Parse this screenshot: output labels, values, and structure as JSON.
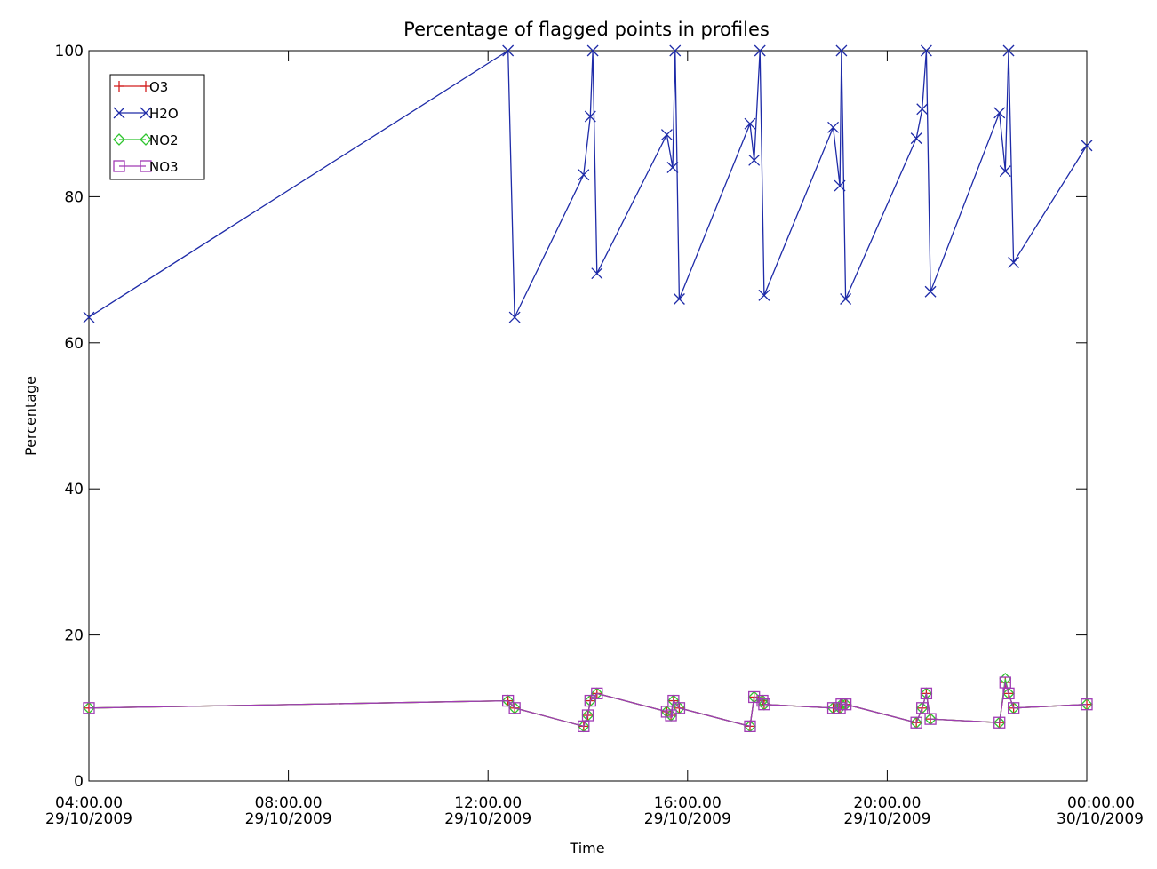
{
  "chart_data": {
    "type": "line",
    "title": "Percentage of flagged points in profiles",
    "xlabel": "Time",
    "ylabel": "Percentage",
    "xlim": [
      "2009-10-29T04:00",
      "2009-10-30T00:00"
    ],
    "ylim": [
      0,
      100
    ],
    "grid": false,
    "legend_position": "top-left",
    "x_ticks": [
      {
        "time": "2009-10-29T04:00",
        "line1": "04:00.00",
        "line2": "29/10/2009"
      },
      {
        "time": "2009-10-29T08:00",
        "line1": "08:00.00",
        "line2": "29/10/2009"
      },
      {
        "time": "2009-10-29T12:00",
        "line1": "12:00.00",
        "line2": "29/10/2009"
      },
      {
        "time": "2009-10-29T16:00",
        "line1": "16:00.00",
        "line2": "29/10/2009"
      },
      {
        "time": "2009-10-29T20:00",
        "line1": "20:00.00",
        "line2": "29/10/2009"
      },
      {
        "time": "2009-10-30T00:00",
        "line1": "00:00.00",
        "line2": "30/10/2009"
      }
    ],
    "y_ticks": [
      0,
      20,
      40,
      60,
      80,
      100
    ],
    "series": [
      {
        "name": "O3",
        "color": "#d21e1e",
        "marker": "plus",
        "points": [
          [
            "2009-10-29T04:00",
            10
          ],
          [
            "2009-10-29T12:24",
            11
          ],
          [
            "2009-10-29T12:32",
            10
          ],
          [
            "2009-10-29T13:55",
            7.5
          ],
          [
            "2009-10-29T14:00",
            9
          ],
          [
            "2009-10-29T14:03",
            11
          ],
          [
            "2009-10-29T14:11",
            12
          ],
          [
            "2009-10-29T15:35",
            9.5
          ],
          [
            "2009-10-29T15:40",
            9
          ],
          [
            "2009-10-29T15:43",
            11
          ],
          [
            "2009-10-29T15:50",
            10
          ],
          [
            "2009-10-29T17:15",
            7.5
          ],
          [
            "2009-10-29T17:20",
            11.5
          ],
          [
            "2009-10-29T17:30",
            11
          ],
          [
            "2009-10-29T17:32",
            10.5
          ],
          [
            "2009-10-29T18:55",
            10
          ],
          [
            "2009-10-29T19:03",
            10
          ],
          [
            "2009-10-29T19:05",
            10.5
          ],
          [
            "2009-10-29T19:10",
            10.5
          ],
          [
            "2009-10-29T20:35",
            8
          ],
          [
            "2009-10-29T20:42",
            10
          ],
          [
            "2009-10-29T20:47",
            12
          ],
          [
            "2009-10-29T20:52",
            8.5
          ],
          [
            "2009-10-29T22:15",
            8
          ],
          [
            "2009-10-29T22:22",
            13.5
          ],
          [
            "2009-10-29T22:26",
            12
          ],
          [
            "2009-10-29T22:32",
            10
          ],
          [
            "2009-10-30T00:00",
            10.5
          ]
        ]
      },
      {
        "name": "H2O",
        "color": "#1e2ba8",
        "marker": "x",
        "points": [
          [
            "2009-10-29T04:00",
            63.5
          ],
          [
            "2009-10-29T12:24",
            100
          ],
          [
            "2009-10-29T12:32",
            63.5
          ],
          [
            "2009-10-29T13:55",
            83
          ],
          [
            "2009-10-29T14:03",
            91
          ],
          [
            "2009-10-29T14:06",
            100
          ],
          [
            "2009-10-29T14:11",
            69.5
          ],
          [
            "2009-10-29T15:35",
            88.5
          ],
          [
            "2009-10-29T15:42",
            84
          ],
          [
            "2009-10-29T15:45",
            100
          ],
          [
            "2009-10-29T15:50",
            66
          ],
          [
            "2009-10-29T17:15",
            90
          ],
          [
            "2009-10-29T17:20",
            85
          ],
          [
            "2009-10-29T17:27",
            100
          ],
          [
            "2009-10-29T17:32",
            66.5
          ],
          [
            "2009-10-29T18:55",
            89.5
          ],
          [
            "2009-10-29T19:03",
            81.5
          ],
          [
            "2009-10-29T19:05",
            100
          ],
          [
            "2009-10-29T19:10",
            66
          ],
          [
            "2009-10-29T20:35",
            88
          ],
          [
            "2009-10-29T20:42",
            92
          ],
          [
            "2009-10-29T20:47",
            100
          ],
          [
            "2009-10-29T20:52",
            67
          ],
          [
            "2009-10-29T22:15",
            91.5
          ],
          [
            "2009-10-29T22:22",
            83.5
          ],
          [
            "2009-10-29T22:26",
            100
          ],
          [
            "2009-10-29T22:32",
            71
          ],
          [
            "2009-10-30T00:00",
            87
          ]
        ]
      },
      {
        "name": "NO2",
        "color": "#2ec42e",
        "marker": "diamond",
        "points": [
          [
            "2009-10-29T04:00",
            10
          ],
          [
            "2009-10-29T12:24",
            11
          ],
          [
            "2009-10-29T12:32",
            10
          ],
          [
            "2009-10-29T13:55",
            7.5
          ],
          [
            "2009-10-29T14:00",
            9
          ],
          [
            "2009-10-29T14:03",
            11
          ],
          [
            "2009-10-29T14:11",
            12
          ],
          [
            "2009-10-29T15:35",
            9.5
          ],
          [
            "2009-10-29T15:40",
            9
          ],
          [
            "2009-10-29T15:43",
            11
          ],
          [
            "2009-10-29T15:50",
            10
          ],
          [
            "2009-10-29T17:15",
            7.5
          ],
          [
            "2009-10-29T17:20",
            11.5
          ],
          [
            "2009-10-29T17:30",
            11
          ],
          [
            "2009-10-29T17:32",
            10.5
          ],
          [
            "2009-10-29T18:55",
            10
          ],
          [
            "2009-10-29T19:03",
            10
          ],
          [
            "2009-10-29T19:05",
            10.5
          ],
          [
            "2009-10-29T19:10",
            10.5
          ],
          [
            "2009-10-29T20:35",
            8
          ],
          [
            "2009-10-29T20:42",
            10
          ],
          [
            "2009-10-29T20:47",
            12
          ],
          [
            "2009-10-29T20:52",
            8.5
          ],
          [
            "2009-10-29T22:15",
            8
          ],
          [
            "2009-10-29T22:22",
            14
          ],
          [
            "2009-10-29T22:26",
            12
          ],
          [
            "2009-10-29T22:32",
            10
          ],
          [
            "2009-10-30T00:00",
            10.5
          ]
        ]
      },
      {
        "name": "NO3",
        "color": "#a13bb5",
        "marker": "square",
        "points": [
          [
            "2009-10-29T04:00",
            10
          ],
          [
            "2009-10-29T12:24",
            11
          ],
          [
            "2009-10-29T12:32",
            10
          ],
          [
            "2009-10-29T13:55",
            7.5
          ],
          [
            "2009-10-29T14:00",
            9
          ],
          [
            "2009-10-29T14:03",
            11
          ],
          [
            "2009-10-29T14:11",
            12
          ],
          [
            "2009-10-29T15:35",
            9.5
          ],
          [
            "2009-10-29T15:40",
            9
          ],
          [
            "2009-10-29T15:43",
            11
          ],
          [
            "2009-10-29T15:50",
            10
          ],
          [
            "2009-10-29T17:15",
            7.5
          ],
          [
            "2009-10-29T17:20",
            11.5
          ],
          [
            "2009-10-29T17:30",
            11
          ],
          [
            "2009-10-29T17:32",
            10.5
          ],
          [
            "2009-10-29T18:55",
            10
          ],
          [
            "2009-10-29T19:03",
            10
          ],
          [
            "2009-10-29T19:05",
            10.5
          ],
          [
            "2009-10-29T19:10",
            10.5
          ],
          [
            "2009-10-29T20:35",
            8
          ],
          [
            "2009-10-29T20:42",
            10
          ],
          [
            "2009-10-29T20:47",
            12
          ],
          [
            "2009-10-29T20:52",
            8.5
          ],
          [
            "2009-10-29T22:15",
            8
          ],
          [
            "2009-10-29T22:22",
            13.5
          ],
          [
            "2009-10-29T22:26",
            12
          ],
          [
            "2009-10-29T22:32",
            10
          ],
          [
            "2009-10-30T00:00",
            10.5
          ]
        ]
      }
    ]
  }
}
